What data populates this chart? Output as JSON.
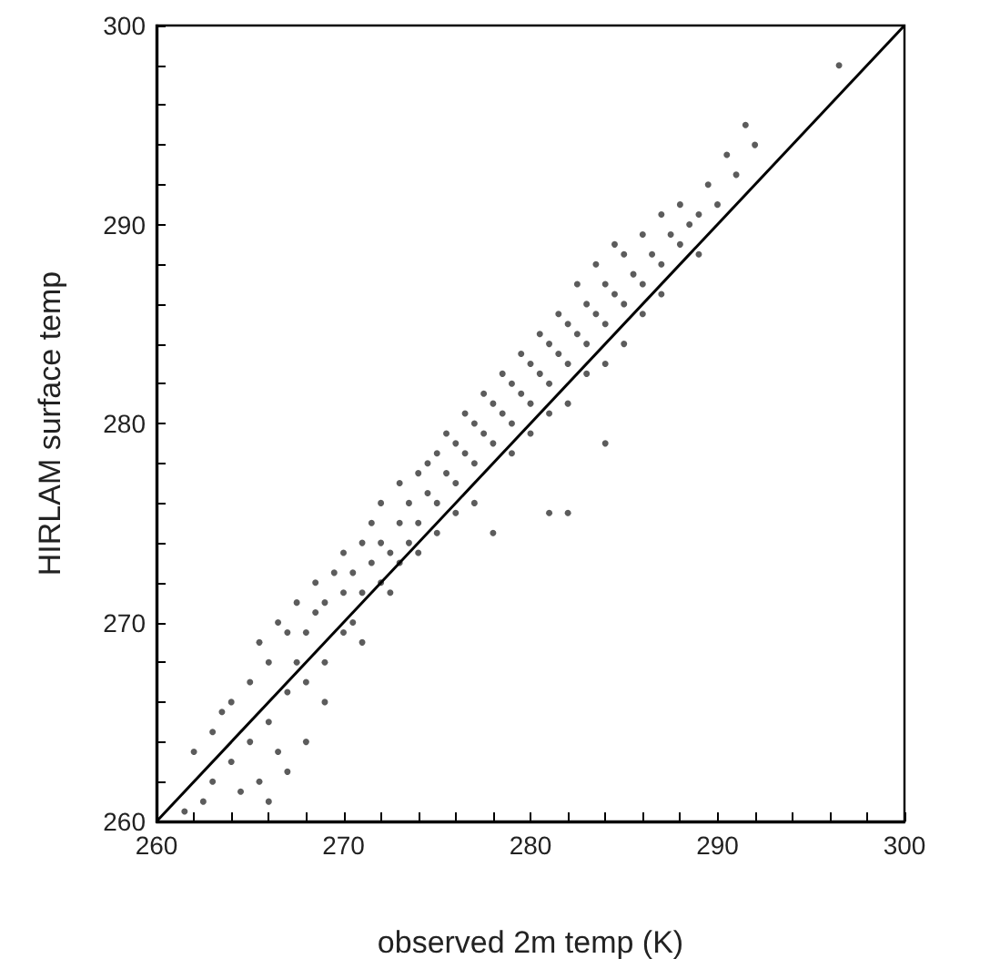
{
  "chart_data": {
    "type": "scatter",
    "xlabel": "observed 2m temp (K)",
    "ylabel": "HIRLAM surface temp",
    "xlim": [
      260,
      300
    ],
    "ylim": [
      260,
      300
    ],
    "xticks": [
      260,
      {
        "value": 262,
        "label": null
      },
      {
        "value": 264,
        "label": null
      },
      {
        "value": 266,
        "label": null
      },
      {
        "value": 268,
        "label": null
      },
      270,
      {
        "value": 272,
        "label": null
      },
      {
        "value": 274,
        "label": null
      },
      {
        "value": 276,
        "label": null
      },
      {
        "value": 278,
        "label": null
      },
      280,
      {
        "value": 282,
        "label": null
      },
      {
        "value": 284,
        "label": null
      },
      {
        "value": 286,
        "label": null
      },
      {
        "value": 288,
        "label": null
      },
      290,
      {
        "value": 292,
        "label": null
      },
      {
        "value": 294,
        "label": null
      },
      {
        "value": 296,
        "label": null
      },
      {
        "value": 298,
        "label": null
      },
      300
    ],
    "yticks": [
      260,
      {
        "value": 262,
        "label": null
      },
      {
        "value": 264,
        "label": null
      },
      {
        "value": 266,
        "label": null
      },
      {
        "value": 268,
        "label": null
      },
      270,
      {
        "value": 272,
        "label": null
      },
      {
        "value": 274,
        "label": null
      },
      {
        "value": 276,
        "label": null
      },
      {
        "value": 278,
        "label": null
      },
      280,
      {
        "value": 282,
        "label": null
      },
      {
        "value": 284,
        "label": null
      },
      {
        "value": 286,
        "label": null
      },
      {
        "value": 288,
        "label": null
      },
      290,
      {
        "value": 292,
        "label": null
      },
      {
        "value": 294,
        "label": null
      },
      {
        "value": 296,
        "label": null
      },
      {
        "value": 298,
        "label": null
      },
      300
    ],
    "grid": false,
    "marker": "circle",
    "series": [
      {
        "color": "#333333",
        "x": [
          261.5,
          262,
          262.5,
          263,
          263,
          263.5,
          264,
          264,
          264.5,
          265,
          265,
          265.5,
          265.5,
          266,
          266,
          266,
          266.5,
          266.5,
          267,
          267,
          267,
          267.5,
          267.5,
          268,
          268,
          268,
          268.5,
          268.5,
          269,
          269,
          269,
          269.5,
          270,
          270,
          270,
          270.5,
          270.5,
          271,
          271,
          271,
          271.5,
          271.5,
          272,
          272,
          272,
          272.5,
          272.5,
          273,
          273,
          273,
          273.5,
          273.5,
          274,
          274,
          274,
          274.5,
          274.5,
          275,
          275,
          275,
          275.5,
          275.5,
          276,
          276,
          276,
          276.5,
          276.5,
          277,
          277,
          277,
          277.5,
          277.5,
          278,
          278,
          278,
          278.5,
          278.5,
          279,
          279,
          279,
          279.5,
          279.5,
          280,
          280,
          280,
          280.5,
          280.5,
          281,
          281,
          281,
          281.5,
          281.5,
          282,
          282,
          282,
          282.5,
          282.5,
          283,
          283,
          283,
          283.5,
          283.5,
          284,
          284,
          284,
          284.5,
          284.5,
          285,
          285,
          285,
          285.5,
          286,
          286,
          286,
          286.5,
          287,
          287,
          287,
          287.5,
          288,
          288,
          288.5,
          289,
          289,
          289.5,
          290,
          290.5,
          291,
          291.5,
          292,
          296.5,
          281,
          282,
          284
        ],
        "values": [
          260.5,
          263.5,
          261,
          264.5,
          262,
          265.5,
          263,
          266,
          261.5,
          267,
          264,
          269,
          262,
          268,
          265,
          261,
          270,
          263.5,
          266.5,
          269.5,
          262.5,
          268,
          271,
          264,
          269.5,
          267,
          270.5,
          272,
          268,
          271,
          266,
          272.5,
          269.5,
          271.5,
          273.5,
          270,
          272.5,
          274,
          271.5,
          269,
          273,
          275,
          272,
          274,
          276,
          273.5,
          271.5,
          275,
          277,
          273,
          276,
          274,
          275,
          277.5,
          273.5,
          276.5,
          278,
          276,
          278.5,
          274.5,
          277.5,
          279.5,
          277,
          279,
          275.5,
          278.5,
          280.5,
          278,
          280,
          276,
          279.5,
          281.5,
          279,
          281,
          274.5,
          280.5,
          282.5,
          280,
          282,
          278.5,
          281.5,
          283.5,
          281,
          283,
          279.5,
          282.5,
          284.5,
          282,
          284,
          280.5,
          283.5,
          285.5,
          283,
          285,
          281,
          284.5,
          287,
          284,
          286,
          282.5,
          285.5,
          288,
          285,
          287,
          283,
          286.5,
          289,
          286,
          288.5,
          284,
          287.5,
          287,
          289.5,
          285.5,
          288.5,
          288,
          290.5,
          286.5,
          289.5,
          289,
          291,
          290,
          290.5,
          288.5,
          292,
          291,
          293.5,
          292.5,
          295,
          294,
          298,
          275.5,
          275.5,
          279
        ]
      },
      {
        "type": "line",
        "color": "#000000",
        "marker": "none",
        "x": [
          260,
          300
        ],
        "values": [
          260,
          300
        ]
      }
    ]
  }
}
